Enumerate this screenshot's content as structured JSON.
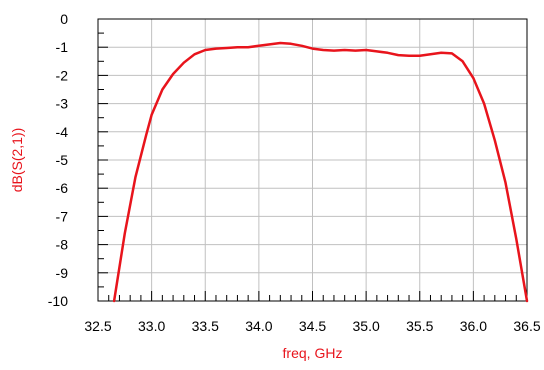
{
  "chart_data": {
    "type": "line",
    "title": "",
    "xlabel": "freq, GHz",
    "ylabel": "dB(S(2,1))",
    "xlim": [
      32.5,
      36.5
    ],
    "ylim": [
      -10,
      0
    ],
    "x_ticks": [
      "32.5",
      "33.0",
      "33.5",
      "34.0",
      "34.5",
      "35.0",
      "35.5",
      "36.0",
      "36.5"
    ],
    "y_ticks": [
      "0",
      "-1",
      "-2",
      "-3",
      "-4",
      "-5",
      "-6",
      "-7",
      "-8",
      "-9",
      "-10"
    ],
    "grid": true,
    "series_color": "#e8141c",
    "label_color": "#e8141c",
    "series": [
      {
        "x": [
          32.65,
          32.75,
          32.85,
          32.95,
          33.0,
          33.1,
          33.2,
          33.3,
          33.4,
          33.5,
          33.6,
          33.7,
          33.8,
          33.9,
          34.0,
          34.1,
          34.2,
          34.3,
          34.4,
          34.5,
          34.6,
          34.7,
          34.8,
          34.9,
          35.0,
          35.1,
          35.2,
          35.3,
          35.4,
          35.5,
          35.6,
          35.7,
          35.8,
          35.9,
          36.0,
          36.1,
          36.2,
          36.3,
          36.4,
          36.5
        ],
        "y": [
          -10.0,
          -7.6,
          -5.6,
          -4.1,
          -3.4,
          -2.5,
          -1.95,
          -1.55,
          -1.25,
          -1.1,
          -1.05,
          -1.03,
          -1.0,
          -1.0,
          -0.95,
          -0.9,
          -0.85,
          -0.88,
          -0.95,
          -1.05,
          -1.1,
          -1.12,
          -1.1,
          -1.12,
          -1.1,
          -1.15,
          -1.2,
          -1.28,
          -1.3,
          -1.3,
          -1.25,
          -1.2,
          -1.22,
          -1.5,
          -2.1,
          -3.0,
          -4.3,
          -5.8,
          -7.8,
          -10.0
        ]
      }
    ]
  }
}
